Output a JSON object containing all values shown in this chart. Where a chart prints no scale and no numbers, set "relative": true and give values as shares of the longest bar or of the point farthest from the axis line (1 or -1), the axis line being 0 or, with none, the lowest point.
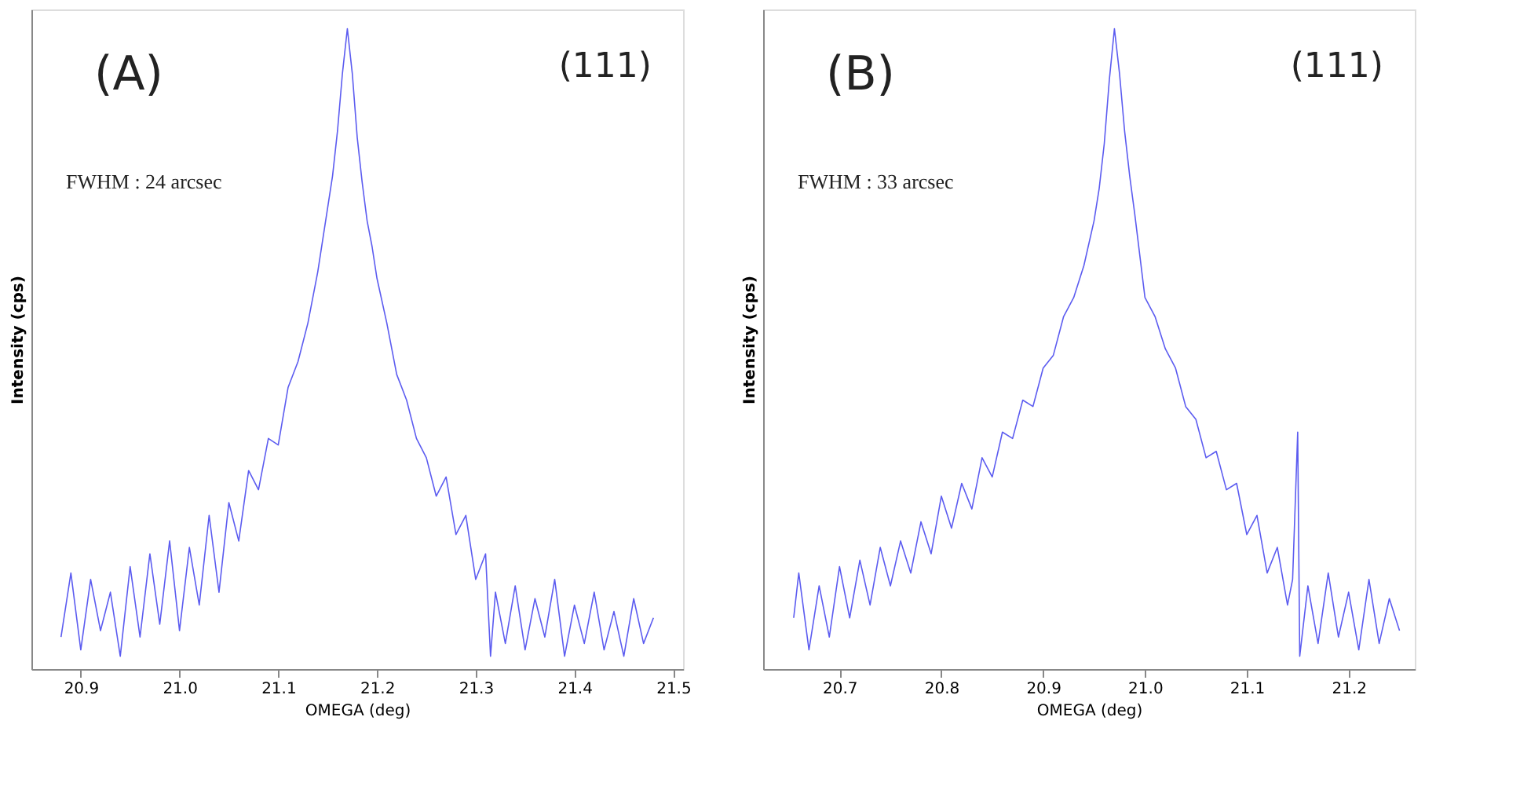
{
  "chart_data": [
    {
      "type": "line",
      "relative": true,
      "xlabel": "OMEGA (deg)",
      "ylabel": "Intensity (cps)",
      "annotations": [
        "(A)",
        "(111)",
        "FWHM : 24 arcsec"
      ],
      "xlim": [
        20.85,
        21.51
      ],
      "xticks": [
        20.9,
        {
          "value": 21,
          "label": "21.0"
        },
        21.1,
        21.2,
        21.3,
        21.4,
        21.5
      ],
      "grid": false,
      "series": [
        {
          "color": "#5c5cf0",
          "x": [
            20.88,
            20.89,
            20.9,
            20.91,
            20.92,
            20.93,
            20.94,
            20.95,
            20.96,
            20.97,
            20.98,
            20.99,
            21.0,
            21.01,
            21.02,
            21.03,
            21.04,
            21.05,
            21.06,
            21.07,
            21.08,
            21.09,
            21.1,
            21.11,
            21.12,
            21.13,
            21.14,
            21.145,
            21.15,
            21.155,
            21.16,
            21.165,
            21.17,
            21.175,
            21.18,
            21.185,
            21.19,
            21.195,
            21.2,
            21.21,
            21.22,
            21.23,
            21.24,
            21.25,
            21.26,
            21.27,
            21.28,
            21.29,
            21.3,
            21.31,
            21.315,
            21.32,
            21.33,
            21.34,
            21.35,
            21.36,
            21.37,
            21.38,
            21.39,
            21.4,
            21.41,
            21.42,
            21.43,
            21.44,
            21.45,
            21.46,
            21.47,
            21.48
          ],
          "values": [
            0.05,
            0.15,
            0.03,
            0.14,
            0.06,
            0.12,
            0.02,
            0.16,
            0.05,
            0.18,
            0.07,
            0.2,
            0.06,
            0.19,
            0.1,
            0.24,
            0.12,
            0.26,
            0.2,
            0.31,
            0.28,
            0.36,
            0.35,
            0.44,
            0.48,
            0.54,
            0.62,
            0.67,
            0.72,
            0.77,
            0.84,
            0.93,
            1.0,
            0.93,
            0.83,
            0.76,
            0.7,
            0.66,
            0.61,
            0.54,
            0.46,
            0.42,
            0.36,
            0.33,
            0.27,
            0.3,
            0.21,
            0.24,
            0.14,
            0.18,
            0.02,
            0.12,
            0.04,
            0.13,
            0.03,
            0.11,
            0.05,
            0.14,
            0.02,
            0.1,
            0.04,
            0.12,
            0.03,
            0.09,
            0.02,
            0.11,
            0.04,
            0.08
          ]
        }
      ]
    },
    {
      "type": "line",
      "relative": true,
      "xlabel": "OMEGA (deg)",
      "ylabel": "Intensity (cps)",
      "annotations": [
        "(B)",
        "(111)",
        "FWHM : 33 arcsec"
      ],
      "xlim": [
        20.625,
        21.265
      ],
      "xticks": [
        20.7,
        20.8,
        20.9,
        {
          "value": 21,
          "label": "21.0"
        },
        21.1,
        21.2
      ],
      "grid": false,
      "series": [
        {
          "color": "#5c5cf0",
          "x": [
            20.655,
            20.66,
            20.67,
            20.68,
            20.69,
            20.7,
            20.71,
            20.72,
            20.73,
            20.74,
            20.75,
            20.76,
            20.77,
            20.78,
            20.79,
            20.8,
            20.81,
            20.82,
            20.83,
            20.84,
            20.85,
            20.86,
            20.87,
            20.88,
            20.89,
            20.9,
            20.91,
            20.92,
            20.93,
            20.94,
            20.95,
            20.955,
            20.96,
            20.965,
            20.97,
            20.975,
            20.98,
            20.985,
            20.99,
            21.0,
            21.01,
            21.02,
            21.03,
            21.04,
            21.05,
            21.06,
            21.07,
            21.08,
            21.09,
            21.1,
            21.11,
            21.12,
            21.13,
            21.14,
            21.145,
            21.15,
            21.152,
            21.16,
            21.17,
            21.18,
            21.19,
            21.2,
            21.21,
            21.22,
            21.23,
            21.24,
            21.25
          ],
          "values": [
            0.08,
            0.15,
            0.03,
            0.13,
            0.05,
            0.16,
            0.08,
            0.17,
            0.1,
            0.19,
            0.13,
            0.2,
            0.15,
            0.23,
            0.18,
            0.27,
            0.22,
            0.29,
            0.25,
            0.33,
            0.3,
            0.37,
            0.36,
            0.42,
            0.41,
            0.47,
            0.49,
            0.55,
            0.58,
            0.63,
            0.7,
            0.75,
            0.82,
            0.92,
            1.0,
            0.93,
            0.84,
            0.77,
            0.71,
            0.58,
            0.55,
            0.5,
            0.47,
            0.41,
            0.39,
            0.33,
            0.34,
            0.28,
            0.29,
            0.21,
            0.24,
            0.15,
            0.19,
            0.1,
            0.14,
            0.37,
            0.02,
            0.13,
            0.04,
            0.15,
            0.05,
            0.12,
            0.03,
            0.14,
            0.04,
            0.11,
            0.06
          ]
        }
      ]
    }
  ]
}
